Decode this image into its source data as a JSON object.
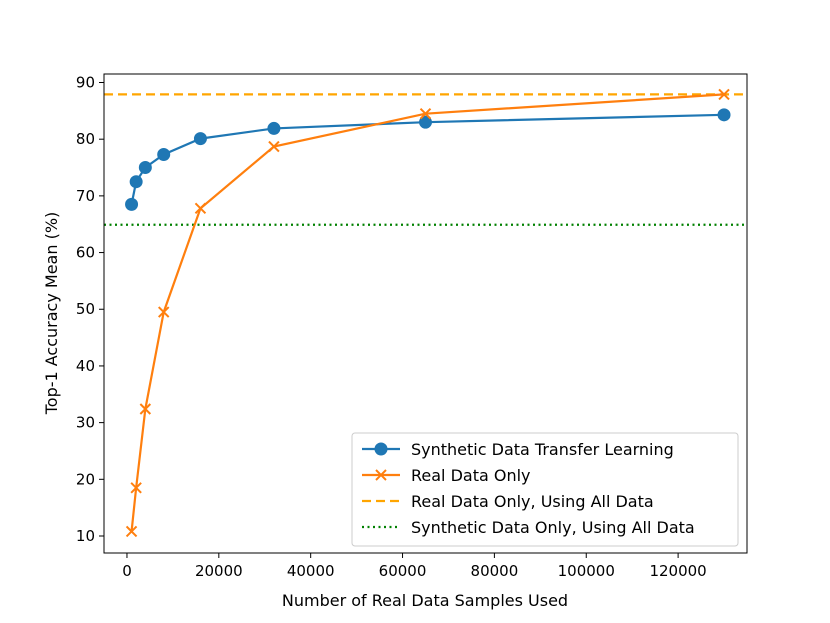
{
  "chart_data": {
    "type": "line",
    "xlabel": "Number of Real Data Samples Used",
    "ylabel": "Top-1 Accuracy Mean (%)",
    "xlim": [
      -5000,
      135000
    ],
    "ylim": [
      7,
      91.5
    ],
    "xticks": [
      0,
      20000,
      40000,
      60000,
      80000,
      100000,
      120000
    ],
    "xtick_labels": [
      "0",
      "20000",
      "40000",
      "60000",
      "80000",
      "100000",
      "120000"
    ],
    "yticks": [
      10,
      20,
      30,
      40,
      50,
      60,
      70,
      80,
      90
    ],
    "ytick_labels": [
      "10",
      "20",
      "30",
      "40",
      "50",
      "60",
      "70",
      "80",
      "90"
    ],
    "grid": false,
    "legend_position": "lower-right",
    "series": [
      {
        "name": "Synthetic Data Transfer Learning",
        "style": "line-circle",
        "color": "#1f77b4",
        "x": [
          1000,
          2000,
          4000,
          8000,
          16000,
          32000,
          65000,
          130000
        ],
        "y": [
          68.5,
          72.5,
          75.0,
          77.3,
          80.1,
          81.9,
          83.0,
          84.3
        ]
      },
      {
        "name": "Real Data Only",
        "style": "line-x",
        "color": "#ff7f0e",
        "x": [
          1000,
          2000,
          4000,
          8000,
          16000,
          32000,
          65000,
          130000
        ],
        "y": [
          10.8,
          18.5,
          32.4,
          49.5,
          67.8,
          78.7,
          84.5,
          87.9
        ]
      }
    ],
    "hlines": [
      {
        "name": "Real Data Only, Using All Data",
        "style": "dashed",
        "color": "#ffa500",
        "y": 87.9
      },
      {
        "name": "Synthetic Data Only, Using All Data",
        "style": "dotted",
        "color": "#008000",
        "y": 64.9
      }
    ]
  }
}
